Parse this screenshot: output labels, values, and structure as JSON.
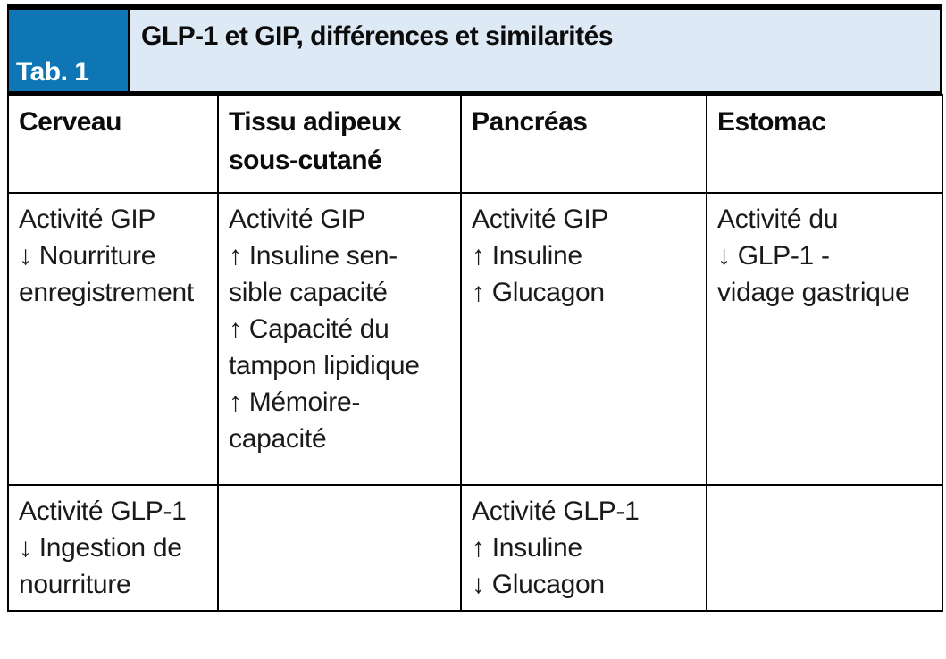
{
  "header": {
    "tab_label": "Tab. 1",
    "title": "GLP-1 et GIP, différences et similarités",
    "tab_bg_color": "#0e76b4",
    "banner_bg_color": "#dde9f5"
  },
  "table": {
    "columns": [
      "Cerveau",
      "Tissu adipeux sous-cutané",
      "Pancréas",
      "Estomac"
    ],
    "columns_lines": [
      [
        "Cerveau"
      ],
      [
        "Tissu adipeux",
        "sous-cutané"
      ],
      [
        "Pancréas"
      ],
      [
        "Estomac"
      ]
    ],
    "body": [
      {
        "cells": [
          [
            "Activité GIP",
            "↓ Nourriture",
            "enregistrement"
          ],
          [
            "Activité GIP",
            "↑ Insuline sen-",
            "sible capacité",
            "↑ Capacité du",
            "tampon lipidique",
            "↑ Mémoire-",
            "capacité"
          ],
          [
            "Activité GIP",
            "↑ Insuline",
            "↑ Glucagon"
          ],
          [
            "Activité du",
            "↓ GLP-1 -",
            "vidage gastrique"
          ]
        ]
      },
      {
        "cells": [
          [
            "Activité GLP-1",
            "↓ Ingestion de",
            "nourriture"
          ],
          [],
          [
            "Activité GLP-1",
            "↑ Insuline",
            "↓ Glucagon"
          ],
          []
        ]
      }
    ]
  }
}
